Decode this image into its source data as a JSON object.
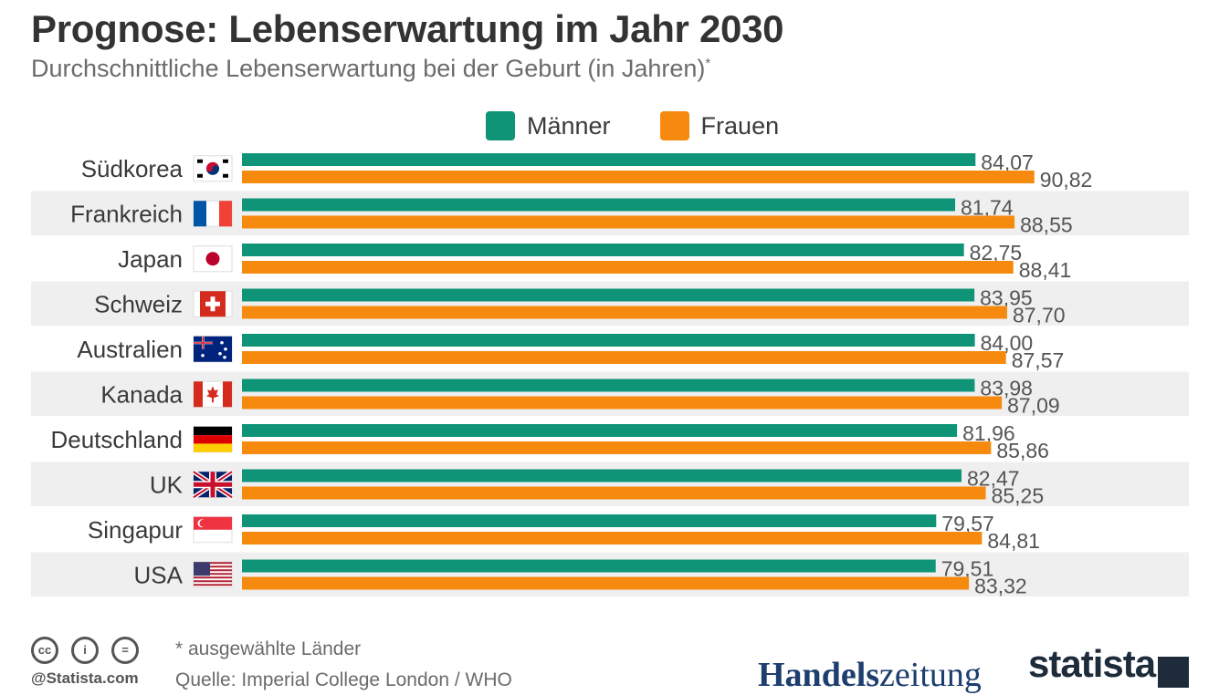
{
  "title": "Prognose: Lebenserwartung im Jahr 2030",
  "subtitle": "Durchschnittliche Lebenserwartung bei der Geburt (in Jahren)",
  "subtitle_marker": "*",
  "legend": [
    {
      "label": "Männer",
      "color": "#0f9477"
    },
    {
      "label": "Frauen",
      "color": "#f58a0f"
    }
  ],
  "chart_data": {
    "type": "bar",
    "orientation": "horizontal",
    "title": "Prognose: Lebenserwartung im Jahr 2030",
    "subtitle": "Durchschnittliche Lebenserwartung bei der Geburt (in Jahren)*",
    "categories": [
      "Südkorea",
      "Frankreich",
      "Japan",
      "Schweiz",
      "Australien",
      "Kanada",
      "Deutschland",
      "UK",
      "Singapur",
      "USA"
    ],
    "category_flags": [
      "south-korea-flag-icon",
      "france-flag-icon",
      "japan-flag-icon",
      "switzerland-flag-icon",
      "australia-flag-icon",
      "canada-flag-icon",
      "germany-flag-icon",
      "uk-flag-icon",
      "singapore-flag-icon",
      "usa-flag-icon"
    ],
    "series": [
      {
        "name": "Männer",
        "color": "#0f9477",
        "values": [
          84.07,
          81.74,
          82.75,
          83.95,
          84.0,
          83.98,
          81.96,
          82.47,
          79.57,
          79.51
        ],
        "labels": [
          "84,07",
          "81,74",
          "82,75",
          "83,95",
          "84,00",
          "83,98",
          "81,96",
          "82,47",
          "79,57",
          "79,51"
        ]
      },
      {
        "name": "Frauen",
        "color": "#f58a0f",
        "values": [
          90.82,
          88.55,
          88.41,
          87.7,
          87.57,
          87.09,
          85.86,
          85.25,
          84.81,
          83.32
        ],
        "labels": [
          "90,82",
          "88,55",
          "88,41",
          "87,70",
          "87,57",
          "87,09",
          "85,86",
          "85,25",
          "84,81",
          "83,32"
        ]
      }
    ],
    "xlim": [
      0,
      100
    ],
    "grid": false,
    "legend_position": "top",
    "row_band_color": "#efefef"
  },
  "footer": {
    "note": "* ausgewählte Länder",
    "source": "Quelle: Imperial College London / WHO",
    "credit": "@Statista.com",
    "license_icons": [
      "cc-icon",
      "by-icon",
      "nd-icon"
    ],
    "brand_handelszeitung_bold": "Handels",
    "brand_handelszeitung_rest": "zeitung",
    "brand_statista": "statista"
  }
}
